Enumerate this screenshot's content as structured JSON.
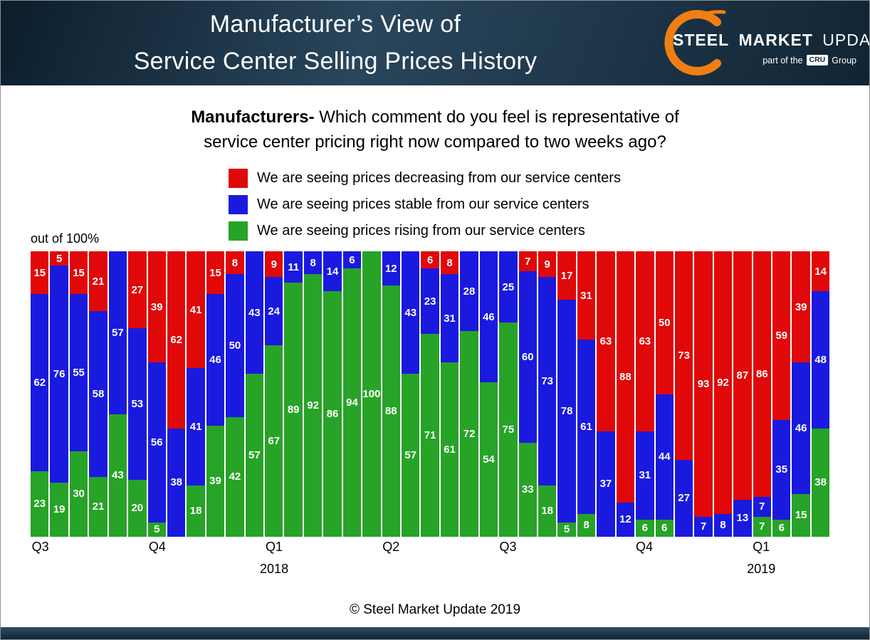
{
  "header": {
    "title_line1": "Manufacturer’s View of",
    "title_line2": "Service Center Selling Prices History",
    "logo": {
      "steel": "STEEL",
      "market": "MARKET",
      "update": "UPDATE",
      "tagline_prefix": "part of the",
      "cru": "CRU",
      "tagline_suffix": "Group",
      "swoosh_color": "#f07f13"
    }
  },
  "question": {
    "bold": "Manufacturers-",
    "line1_rest": " Which comment do you feel is representative of",
    "line2": "service center pricing right now compared to two weeks ago?"
  },
  "legend": [
    {
      "label": "We are seeing prices decreasing from our service centers",
      "color": "#e00808",
      "series": "decreasing"
    },
    {
      "label": "We are seeing prices stable from our service centers",
      "color": "#1a1adf",
      "series": "stable"
    },
    {
      "label": "We are seeing prices rising from our service centers",
      "color": "#27a327",
      "series": "rising"
    }
  ],
  "axis_note": "out of 100%",
  "footer": {
    "copyright": "© Steel Market Update 2019"
  },
  "chart_data": {
    "type": "bar",
    "stacked": true,
    "stack_total": 100,
    "n_bars": 41,
    "grid": false,
    "ylim": [
      0,
      100
    ],
    "title": "Manufacturer's View of Service Center Selling Prices History",
    "series": [
      {
        "name": "We are seeing prices decreasing from our service centers",
        "color": "#e00808",
        "values": [
          15,
          5,
          15,
          21,
          0,
          27,
          39,
          62,
          41,
          15,
          8,
          0,
          9,
          0,
          0,
          0,
          0,
          0,
          0,
          0,
          6,
          8,
          0,
          0,
          0,
          7,
          9,
          17,
          31,
          63,
          88,
          63,
          50,
          73,
          93,
          92,
          87,
          86,
          59,
          39,
          14
        ]
      },
      {
        "name": "We are seeing prices stable from our service centers",
        "color": "#1a1adf",
        "values": [
          62,
          76,
          55,
          58,
          57,
          53,
          56,
          38,
          41,
          46,
          50,
          43,
          24,
          11,
          8,
          14,
          6,
          0,
          12,
          43,
          23,
          31,
          28,
          46,
          25,
          60,
          73,
          78,
          61,
          37,
          12,
          31,
          44,
          27,
          7,
          8,
          13,
          7,
          35,
          46,
          48
        ]
      },
      {
        "name": "We are seeing prices rising from our service centers",
        "color": "#27a327",
        "values": [
          23,
          19,
          30,
          21,
          43,
          20,
          5,
          0,
          18,
          39,
          42,
          57,
          67,
          89,
          92,
          86,
          94,
          100,
          88,
          57,
          71,
          61,
          72,
          54,
          75,
          33,
          18,
          5,
          8,
          0,
          0,
          6,
          6,
          0,
          0,
          0,
          0,
          7,
          6,
          15,
          38
        ]
      }
    ],
    "x_ticks": [
      {
        "label": "Q3",
        "index": 0
      },
      {
        "label": "Q4",
        "index": 6
      },
      {
        "label": "Q1",
        "index": 12
      },
      {
        "label": "Q2",
        "index": 18
      },
      {
        "label": "Q3",
        "index": 24
      },
      {
        "label": "Q4",
        "index": 31
      },
      {
        "label": "Q1",
        "index": 37
      }
    ],
    "year_labels": [
      {
        "label": "2018",
        "index": 12
      },
      {
        "label": "2019",
        "index": 37
      }
    ]
  }
}
